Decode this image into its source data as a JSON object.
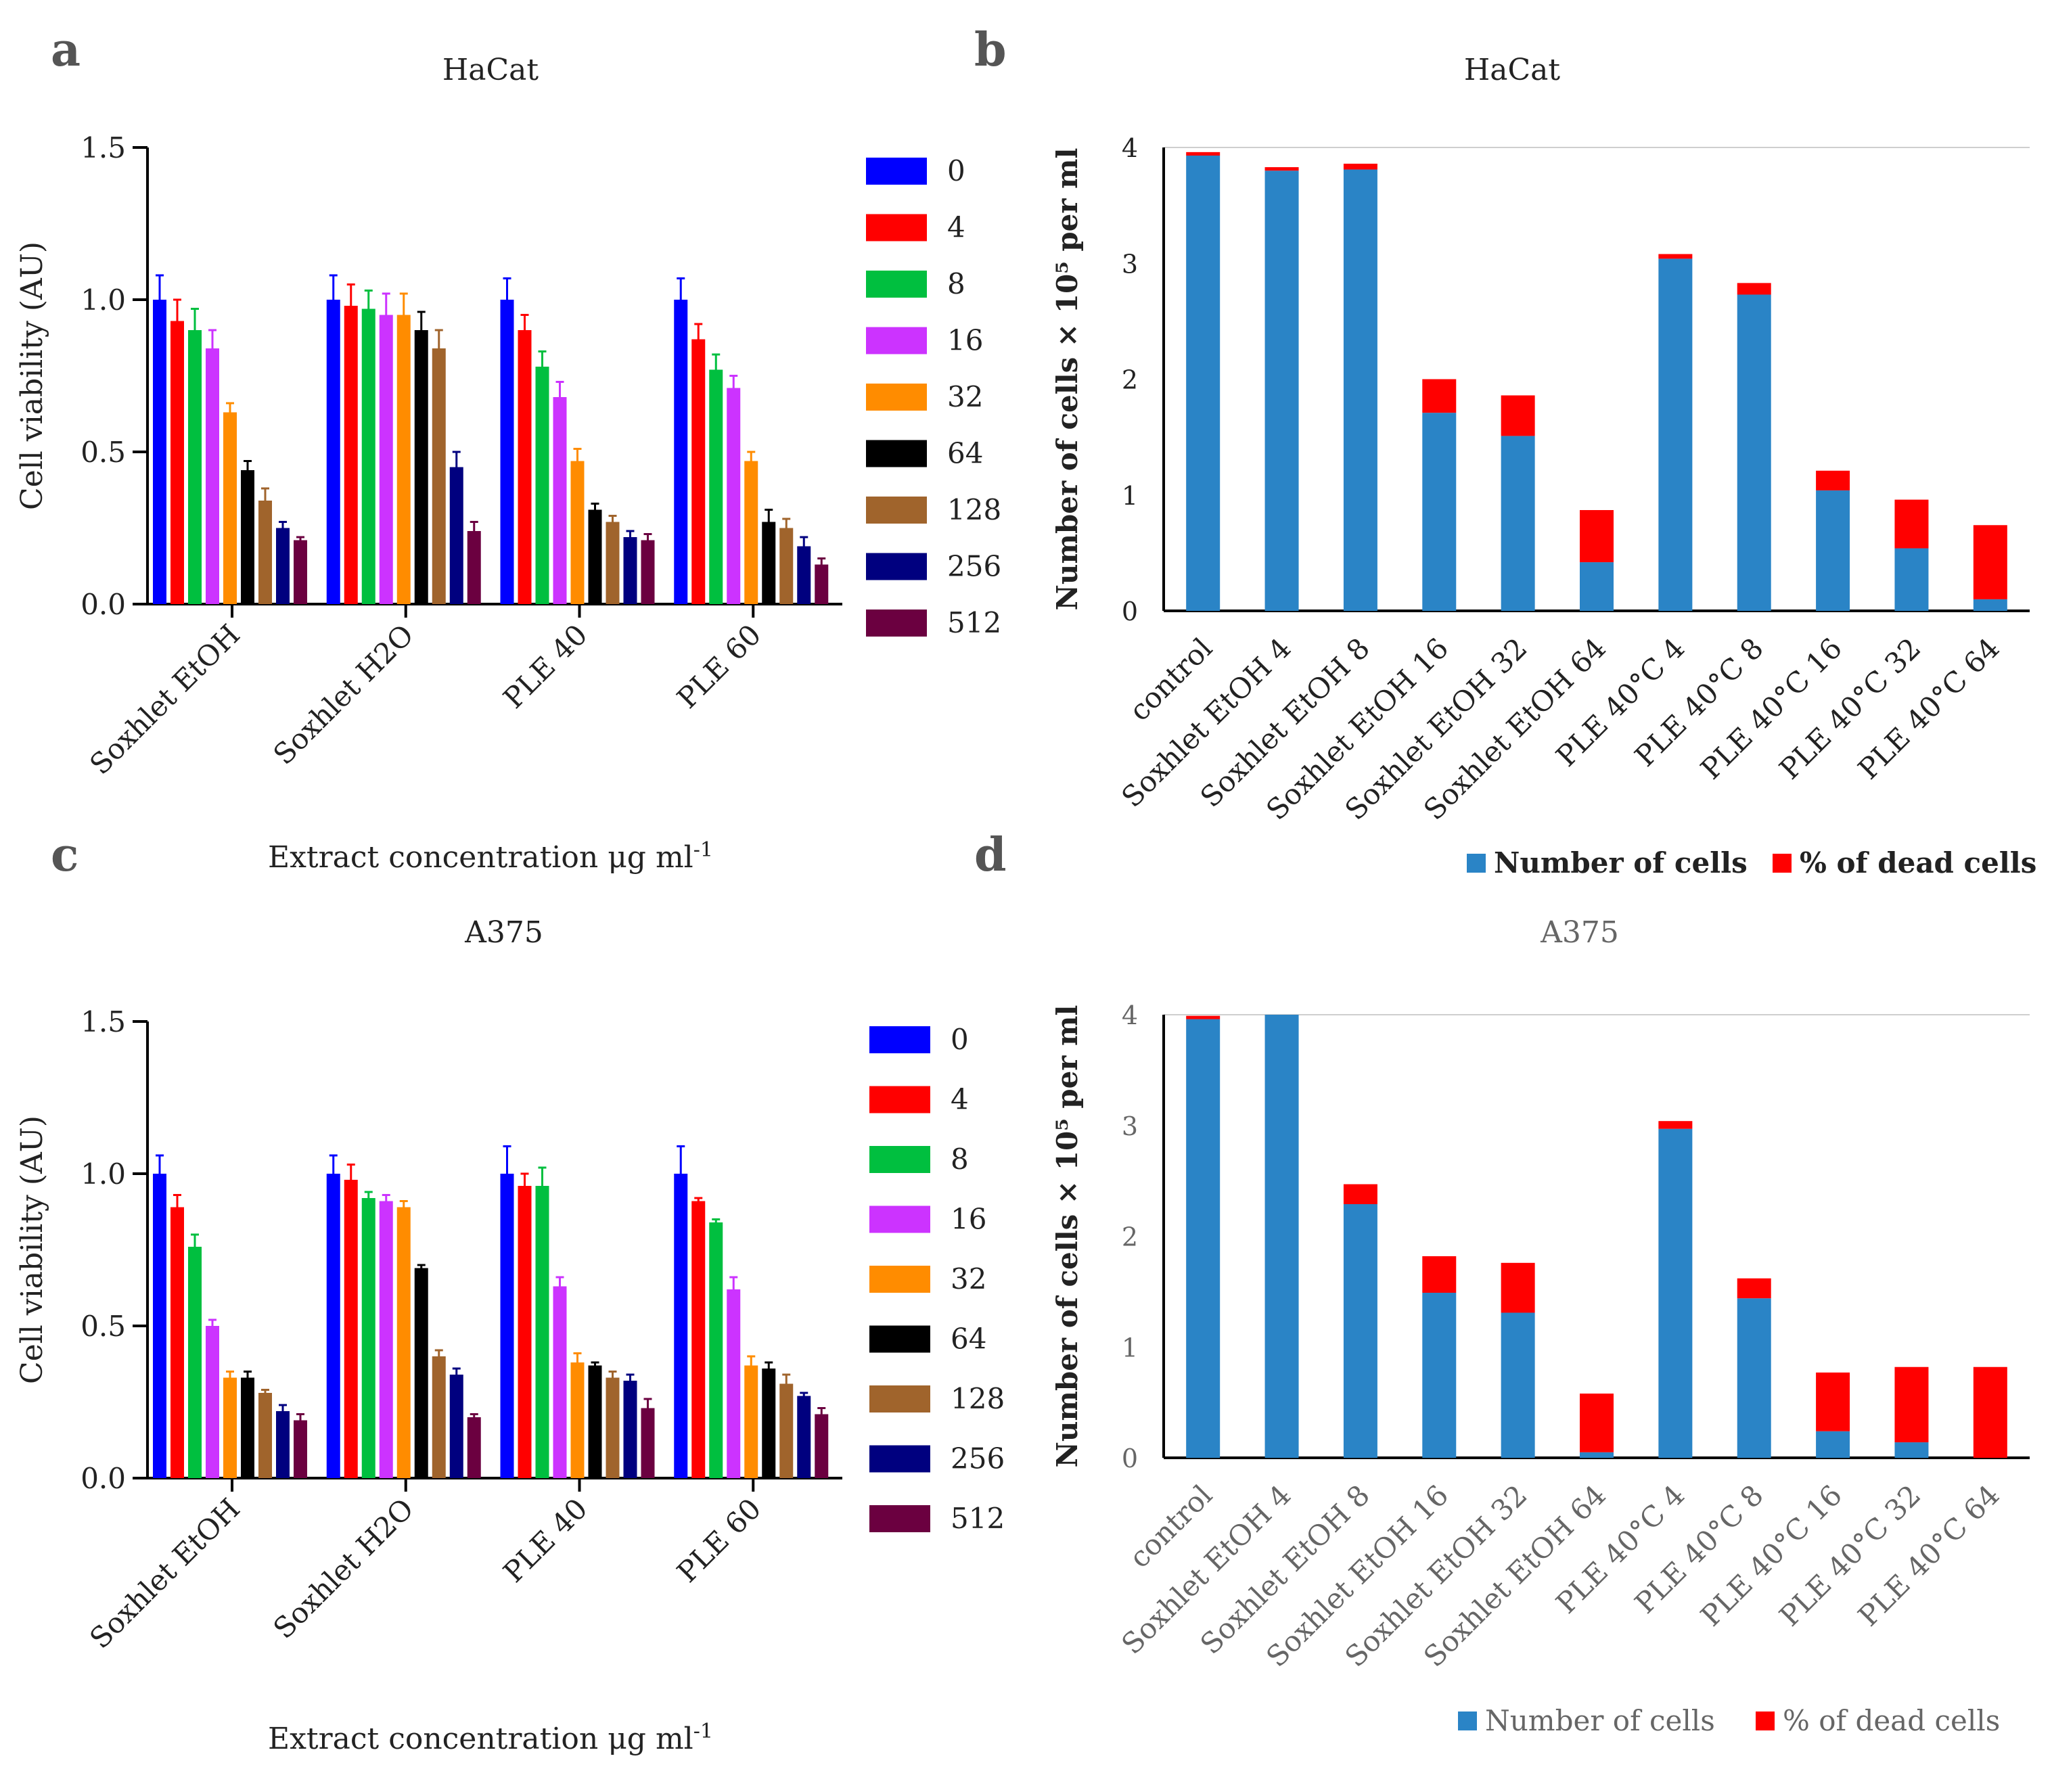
{
  "figure": {
    "panels": [
      {
        "letter": "a"
      },
      {
        "letter": "b"
      },
      {
        "letter": "c"
      },
      {
        "letter": "d"
      }
    ]
  },
  "chart_data": [
    {
      "panel": "a",
      "type": "bar",
      "title": "HaCat",
      "xlabel": "Extract concentration μg ml",
      "xlabel_sup": "-1",
      "ylabel": "Cell viability (AU)",
      "ylim": [
        0,
        1.5
      ],
      "yticks": [
        "0.0",
        "0.5",
        "1.0",
        "1.5"
      ],
      "categories": [
        "Soxhlet EtOH",
        "Soxhlet H2O",
        "PLE 40",
        "PLE 60"
      ],
      "legend_title": "",
      "series": [
        {
          "name": "0",
          "color": "#0000ff",
          "values": [
            1.0,
            1.0,
            1.0,
            1.0
          ],
          "errors": [
            0.08,
            0.08,
            0.07,
            0.07
          ]
        },
        {
          "name": "4",
          "color": "#ff0000",
          "values": [
            0.93,
            0.98,
            0.9,
            0.87
          ],
          "errors": [
            0.07,
            0.07,
            0.05,
            0.05
          ]
        },
        {
          "name": "8",
          "color": "#00bf3f",
          "values": [
            0.9,
            0.97,
            0.78,
            0.77
          ],
          "errors": [
            0.07,
            0.06,
            0.05,
            0.05
          ]
        },
        {
          "name": "16",
          "color": "#cc33ff",
          "values": [
            0.84,
            0.95,
            0.68,
            0.71
          ],
          "errors": [
            0.06,
            0.07,
            0.05,
            0.04
          ]
        },
        {
          "name": "32",
          "color": "#ff8c00",
          "values": [
            0.63,
            0.95,
            0.47,
            0.47
          ],
          "errors": [
            0.03,
            0.07,
            0.04,
            0.03
          ]
        },
        {
          "name": "64",
          "color": "#000000",
          "values": [
            0.44,
            0.9,
            0.31,
            0.27
          ],
          "errors": [
            0.03,
            0.06,
            0.02,
            0.04
          ]
        },
        {
          "name": "128",
          "color": "#a0642c",
          "values": [
            0.34,
            0.84,
            0.27,
            0.25
          ],
          "errors": [
            0.04,
            0.06,
            0.02,
            0.03
          ]
        },
        {
          "name": "256",
          "color": "#00007f",
          "values": [
            0.25,
            0.45,
            0.22,
            0.19
          ],
          "errors": [
            0.02,
            0.05,
            0.02,
            0.03
          ]
        },
        {
          "name": "512",
          "color": "#6b0040",
          "values": [
            0.21,
            0.24,
            0.21,
            0.13
          ],
          "errors": [
            0.01,
            0.03,
            0.02,
            0.02
          ]
        }
      ]
    },
    {
      "panel": "b",
      "type": "bar",
      "stacked": true,
      "title": "HaCat",
      "ylabel": "Number of cells × 10⁵ per ml",
      "ylim": [
        0,
        4
      ],
      "yticks": [
        "0",
        "1",
        "2",
        "3",
        "4"
      ],
      "categories": [
        "control",
        "Soxhlet EtOH 4",
        "Soxhlet EtOH 8",
        "Soxhlet EtOH 16",
        "Soxhlet EtOH 32",
        "Soxhlet EtOH 64",
        "PLE 40°C 4",
        "PLE 40°C 8",
        "PLE 40°C 16",
        "PLE 40°C 32",
        "PLE 40°C 64"
      ],
      "series": [
        {
          "name": "Number of cells",
          "color": "#2a84c6",
          "values": [
            3.93,
            3.8,
            3.81,
            1.71,
            1.51,
            0.42,
            3.04,
            2.73,
            1.04,
            0.54,
            0.1
          ]
        },
        {
          "name": "% of dead cells",
          "color": "#ff0000",
          "values": [
            0.03,
            0.03,
            0.05,
            0.29,
            0.35,
            0.45,
            0.04,
            0.1,
            0.17,
            0.42,
            0.64
          ]
        }
      ]
    },
    {
      "panel": "c",
      "type": "bar",
      "title": "A375",
      "xlabel": "Extract concentration μg ml",
      "xlabel_sup": "-1",
      "ylabel": "Cell viability (AU)",
      "ylim": [
        0,
        1.5
      ],
      "yticks": [
        "0.0",
        "0.5",
        "1.0",
        "1.5"
      ],
      "categories": [
        "Soxhlet EtOH",
        "Soxhlet H2O",
        "PLE 40",
        "PLE 60"
      ],
      "series": [
        {
          "name": "0",
          "color": "#0000ff",
          "values": [
            1.0,
            1.0,
            1.0,
            1.0
          ],
          "errors": [
            0.06,
            0.06,
            0.09,
            0.09
          ]
        },
        {
          "name": "4",
          "color": "#ff0000",
          "values": [
            0.89,
            0.98,
            0.96,
            0.91
          ],
          "errors": [
            0.04,
            0.05,
            0.04,
            0.01
          ]
        },
        {
          "name": "8",
          "color": "#00bf3f",
          "values": [
            0.76,
            0.92,
            0.96,
            0.84
          ],
          "errors": [
            0.04,
            0.02,
            0.06,
            0.01
          ]
        },
        {
          "name": "16",
          "color": "#cc33ff",
          "values": [
            0.5,
            0.91,
            0.63,
            0.62
          ],
          "errors": [
            0.02,
            0.02,
            0.03,
            0.04
          ]
        },
        {
          "name": "32",
          "color": "#ff8c00",
          "values": [
            0.33,
            0.89,
            0.38,
            0.37
          ],
          "errors": [
            0.02,
            0.02,
            0.03,
            0.03
          ]
        },
        {
          "name": "64",
          "color": "#000000",
          "values": [
            0.33,
            0.69,
            0.37,
            0.36
          ],
          "errors": [
            0.02,
            0.01,
            0.01,
            0.02
          ]
        },
        {
          "name": "128",
          "color": "#a0642c",
          "values": [
            0.28,
            0.4,
            0.33,
            0.31
          ],
          "errors": [
            0.01,
            0.02,
            0.02,
            0.03
          ]
        },
        {
          "name": "256",
          "color": "#00007f",
          "values": [
            0.22,
            0.34,
            0.32,
            0.27
          ],
          "errors": [
            0.02,
            0.02,
            0.02,
            0.01
          ]
        },
        {
          "name": "512",
          "color": "#6b0040",
          "values": [
            0.19,
            0.2,
            0.23,
            0.21
          ],
          "errors": [
            0.02,
            0.01,
            0.03,
            0.02
          ]
        }
      ]
    },
    {
      "panel": "d",
      "type": "bar",
      "stacked": true,
      "title": "A375",
      "ylabel": "Number of cells × 10⁵ per ml",
      "ylim": [
        0,
        4
      ],
      "yticks": [
        "0",
        "1",
        "2",
        "3",
        "4"
      ],
      "categories": [
        "control",
        "Soxhlet EtOH 4",
        "Soxhlet EtOH 8",
        "Soxhlet EtOH 16",
        "Soxhlet EtOH 32",
        "Soxhlet EtOH 64",
        "PLE 40°C 4",
        "PLE 40°C 8",
        "PLE 40°C 16",
        "PLE 40°C 32",
        "PLE 40°C 64"
      ],
      "series": [
        {
          "name": "Number of cells",
          "color": "#2a84c6",
          "values": [
            3.96,
            4.0,
            2.29,
            1.49,
            1.31,
            0.05,
            2.97,
            1.44,
            0.24,
            0.14,
            0.0
          ]
        },
        {
          "name": "% of dead cells",
          "color": "#ff0000",
          "values": [
            0.03,
            0.0,
            0.18,
            0.33,
            0.45,
            0.53,
            0.07,
            0.18,
            0.53,
            0.68,
            0.82
          ]
        }
      ]
    }
  ]
}
